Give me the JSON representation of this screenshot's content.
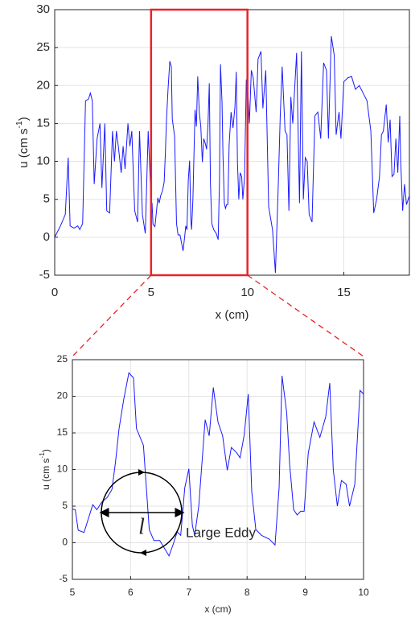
{
  "chart_data": [
    {
      "type": "line",
      "xlabel": "x (cm)",
      "ylabel": [
        "u (cm s",
        "-1",
        ")"
      ],
      "xlim": [
        0,
        18.4
      ],
      "ylim": [
        -5,
        30
      ],
      "xticks": [
        0,
        5,
        10,
        15
      ],
      "yticks": [
        -5,
        0,
        5,
        10,
        15,
        20,
        25,
        30
      ],
      "grid": true,
      "highlight": {
        "xlim": [
          5,
          10
        ],
        "color": "#e8232a"
      },
      "series": [
        {
          "color": "#1a1aff",
          "x": [
            0,
            0.1,
            0.3,
            0.55,
            0.7,
            0.8,
            1.0,
            1.2,
            1.3,
            1.45,
            1.6,
            1.75,
            1.85,
            1.95,
            2.05,
            2.2,
            2.35,
            2.45,
            2.6,
            2.7,
            2.85,
            3.0,
            3.1,
            3.2,
            3.3,
            3.45,
            3.55,
            3.65,
            3.8,
            3.9,
            4.0,
            4.15,
            4.3,
            4.4,
            4.55,
            4.7,
            4.85,
            4.95,
            5.0,
            5.05,
            5.1,
            5.2,
            5.35,
            5.42,
            5.5,
            5.6,
            5.68,
            5.74,
            5.8,
            5.88,
            5.97,
            6.05,
            6.1,
            6.22,
            6.32,
            6.4,
            6.5,
            6.66,
            6.74,
            6.8,
            6.86,
            6.93,
            7.0,
            7.06,
            7.1,
            7.17,
            7.28,
            7.35,
            7.42,
            7.5,
            7.58,
            7.66,
            7.73,
            7.82,
            7.88,
            7.95,
            8.02,
            8.08,
            8.15,
            8.25,
            8.38,
            8.48,
            8.55,
            8.6,
            8.68,
            8.73,
            8.8,
            8.86,
            8.92,
            8.98,
            9.05,
            9.15,
            9.25,
            9.35,
            9.42,
            9.48,
            9.55,
            9.62,
            9.7,
            9.76,
            9.85,
            9.94,
            10.0,
            10.1,
            10.2,
            10.3,
            10.45,
            10.55,
            10.7,
            10.8,
            10.95,
            11.1,
            11.3,
            11.45,
            11.6,
            11.7,
            11.8,
            11.95,
            12.05,
            12.15,
            12.25,
            12.35,
            12.55,
            12.7,
            12.8,
            12.9,
            13.0,
            13.1,
            13.2,
            13.35,
            13.5,
            13.65,
            13.8,
            13.95,
            14.1,
            14.2,
            14.35,
            14.5,
            14.6,
            14.75,
            14.85,
            15.0,
            15.2,
            15.4,
            15.6,
            15.8,
            16.0,
            16.2,
            16.4,
            16.55,
            16.7,
            16.85,
            16.95,
            17.05,
            17.2,
            17.3,
            17.4,
            17.5,
            17.6,
            17.7,
            17.8,
            17.9,
            17.95,
            18.05,
            18.15,
            18.25,
            18.4
          ],
          "values": [
            0,
            0.5,
            1.5,
            3,
            10.5,
            1.5,
            1.2,
            1.5,
            1.0,
            1.8,
            18,
            18.2,
            19,
            18,
            7,
            13,
            15,
            6.5,
            15,
            3.5,
            3.2,
            14,
            10,
            14,
            12,
            8.5,
            12,
            9,
            15,
            12,
            14,
            3.5,
            2,
            14,
            3,
            0.5,
            14,
            8,
            4.6,
            4.5,
            1.7,
            1.4,
            5.2,
            4.5,
            5.5,
            6.2,
            7.3,
            11,
            15.5,
            19.5,
            23.2,
            22.5,
            15.6,
            13.3,
            1.8,
            0.3,
            0.3,
            -1.8,
            0,
            1.5,
            1.0,
            7.5,
            10.1,
            2.4,
            1.0,
            5,
            16.8,
            14.6,
            21.2,
            16.5,
            14.6,
            9.9,
            13,
            12.3,
            11.6,
            14.7,
            20.3,
            7,
            1.8,
            1.0,
            0.5,
            -0.3,
            7.5,
            22.8,
            17.8,
            10.8,
            4.5,
            3.8,
            4.3,
            4.3,
            12.2,
            16.5,
            14.4,
            17.2,
            21.8,
            10,
            5,
            8.5,
            8,
            5,
            8,
            20.8,
            20.3,
            15,
            22,
            21,
            16.5,
            23.5,
            24.5,
            17,
            22,
            4,
            1,
            -4.7,
            7,
            16,
            22.5,
            14,
            13.5,
            3.5,
            18.5,
            15,
            24.3,
            4.5,
            24.5,
            5,
            10.5,
            10,
            3,
            2,
            16,
            16.5,
            13,
            23,
            22,
            13,
            26.5,
            24,
            13.5,
            16.5,
            13,
            20.5,
            21,
            21.2,
            19.5,
            20,
            19,
            18,
            14,
            3.2,
            5,
            8,
            13.5,
            14,
            17.5,
            12.5,
            15.5,
            8,
            8.3,
            13,
            8.5,
            16,
            10,
            3.5,
            7,
            4.3,
            5.5
          ]
        }
      ]
    },
    {
      "type": "line",
      "xlabel": "x (cm)",
      "ylabel": [
        "u (cm s",
        "-1",
        ")"
      ],
      "xlim": [
        5,
        10
      ],
      "ylim": [
        -5,
        25
      ],
      "xticks": [
        5,
        6,
        7,
        8,
        9,
        10
      ],
      "yticks": [
        -5,
        0,
        5,
        10,
        15,
        20,
        25
      ],
      "grid": true,
      "annotation_symbol": "l",
      "annotation": "Large Eddy",
      "series": [
        {
          "color": "#1a1aff",
          "x": [
            5.0,
            5.05,
            5.1,
            5.2,
            5.35,
            5.42,
            5.5,
            5.6,
            5.68,
            5.74,
            5.8,
            5.88,
            5.97,
            6.05,
            6.1,
            6.22,
            6.32,
            6.4,
            6.5,
            6.66,
            6.74,
            6.8,
            6.86,
            6.93,
            7.0,
            7.06,
            7.1,
            7.17,
            7.28,
            7.35,
            7.42,
            7.5,
            7.58,
            7.66,
            7.73,
            7.82,
            7.88,
            7.95,
            8.02,
            8.08,
            8.15,
            8.25,
            8.38,
            8.48,
            8.55,
            8.6,
            8.68,
            8.73,
            8.8,
            8.86,
            8.92,
            8.98,
            9.05,
            9.15,
            9.25,
            9.35,
            9.42,
            9.48,
            9.55,
            9.62,
            9.7,
            9.76,
            9.85,
            9.94,
            10.0
          ],
          "values": [
            4.6,
            4.5,
            1.7,
            1.4,
            5.2,
            4.5,
            5.5,
            6.2,
            7.3,
            11,
            15.5,
            19.5,
            23.2,
            22.5,
            15.6,
            13.3,
            1.8,
            0.3,
            0.3,
            -1.8,
            0,
            1.5,
            1.0,
            7.5,
            10.1,
            2.4,
            1.0,
            5,
            16.8,
            14.6,
            21.2,
            16.5,
            14.6,
            9.9,
            13,
            12.3,
            11.6,
            14.7,
            20.3,
            7,
            1.8,
            1.0,
            0.5,
            -0.3,
            7.5,
            22.8,
            17.8,
            10.8,
            4.5,
            3.8,
            4.3,
            4.3,
            12.2,
            16.5,
            14.4,
            17.2,
            21.8,
            10,
            5,
            8.5,
            8,
            5,
            8,
            20.8,
            20.3
          ]
        }
      ]
    }
  ]
}
